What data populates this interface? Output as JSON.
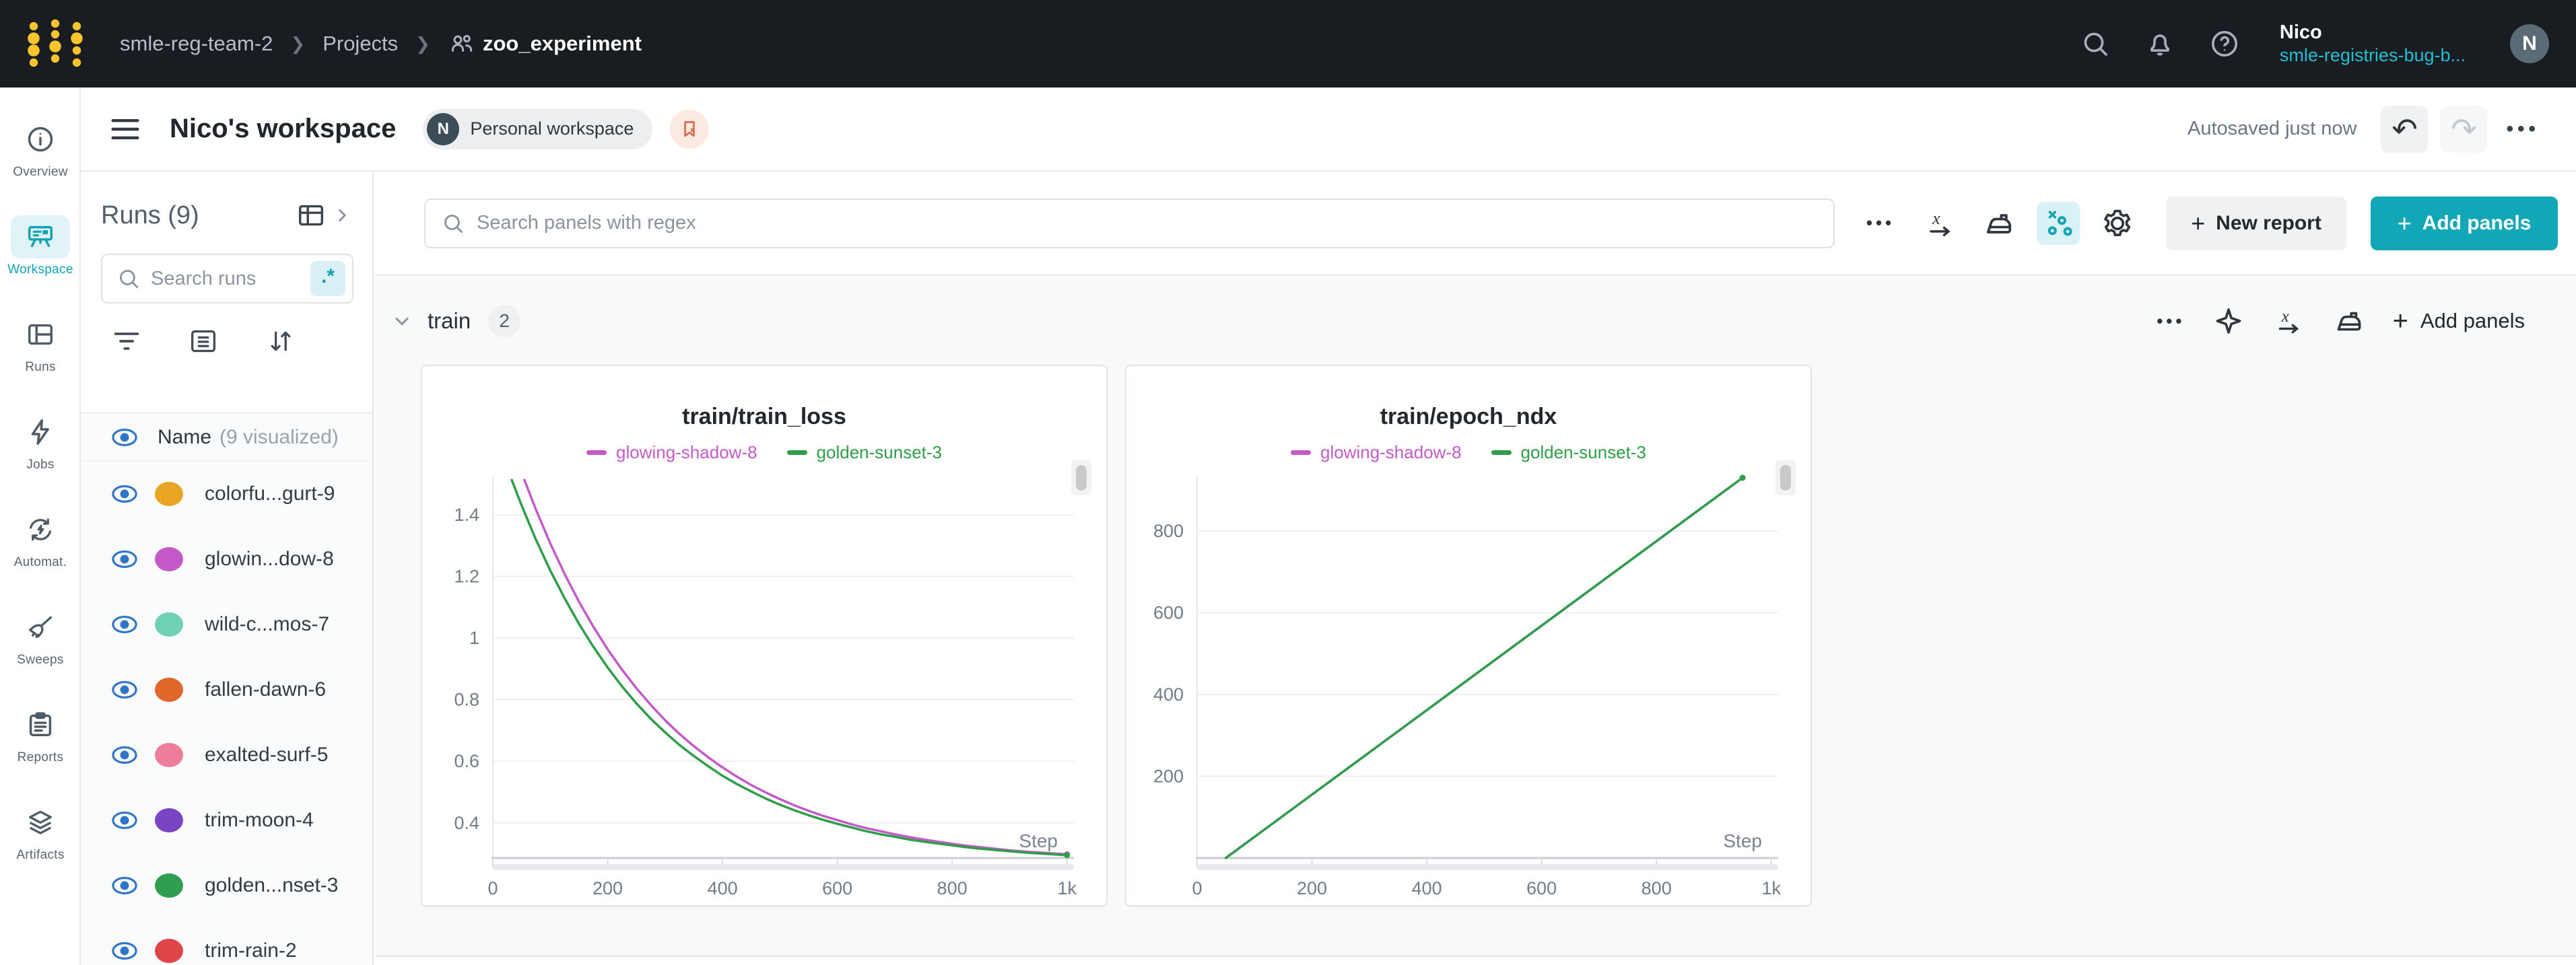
{
  "nav": {
    "breadcrumb": {
      "team": "smle-reg-team-2",
      "projects": "Projects",
      "project": "zoo_experiment"
    },
    "user_name": "Nico",
    "user_org": "smle-registries-bug-b...",
    "avatar_initial": "N"
  },
  "header": {
    "title": "Nico's workspace",
    "badge_initial": "N",
    "badge_label": "Personal workspace",
    "autosave_text": "Autosaved just now"
  },
  "sidebar": {
    "items": [
      {
        "label": "Overview",
        "icon": "info-icon",
        "active": false
      },
      {
        "label": "Workspace",
        "icon": "workspace-icon",
        "active": true
      },
      {
        "label": "Runs",
        "icon": "runs-table-icon",
        "active": false
      },
      {
        "label": "Jobs",
        "icon": "lightning-icon",
        "active": false
      },
      {
        "label": "Automat.",
        "icon": "automations-icon",
        "active": false
      },
      {
        "label": "Sweeps",
        "icon": "broom-icon",
        "active": false
      },
      {
        "label": "Reports",
        "icon": "clipboard-icon",
        "active": false
      },
      {
        "label": "Artifacts",
        "icon": "layers-icon",
        "active": false
      }
    ]
  },
  "runs_panel": {
    "title": "Runs (9)",
    "search_placeholder": "Search runs",
    "regex_label": ".*",
    "name_header": "Name",
    "name_header_suffix": "(9 visualized)",
    "runs": [
      {
        "name": "colorfu...gurt-9",
        "color": "#e8a523"
      },
      {
        "name": "glowin...dow-8",
        "color": "#c45ac8"
      },
      {
        "name": "wild-c...mos-7",
        "color": "#6ed1b4"
      },
      {
        "name": "fallen-dawn-6",
        "color": "#e0662a"
      },
      {
        "name": "exalted-surf-5",
        "color": "#ee7d99"
      },
      {
        "name": "trim-moon-4",
        "color": "#7a45c2"
      },
      {
        "name": "golden...nset-3",
        "color": "#2f9e4f"
      },
      {
        "name": "trim-rain-2",
        "color": "#e04649"
      }
    ]
  },
  "toolbar": {
    "search_placeholder": "Search panels with regex",
    "new_report_label": "New report",
    "add_panels_label": "Add panels",
    "accent_color": "#12a7b7"
  },
  "section": {
    "title": "train",
    "count": "2",
    "add_panels_label": "Add panels"
  },
  "chart_data": [
    {
      "type": "line",
      "title": "train/train_loss",
      "xlabel": "Step",
      "xlim": [
        0,
        1012
      ],
      "ylim": [
        0.286,
        1.52
      ],
      "x_tick_values": [
        0,
        200,
        400,
        600,
        800,
        1000
      ],
      "x_tick_labels": [
        "0",
        "200",
        "400",
        "600",
        "800",
        "1k"
      ],
      "y_tick_values": [
        0.4,
        0.6,
        0.8,
        1,
        1.2,
        1.4
      ],
      "y_tick_labels": [
        "0.4",
        "0.6",
        "0.8",
        "1",
        "1.2",
        "1.4"
      ],
      "grid": "horizontal",
      "legend_position": "top",
      "series": [
        {
          "name": "glowing-shadow-8",
          "color": "#c45ac8",
          "points": [
            [
              55,
              1.513
            ],
            [
              75,
              1.417
            ],
            [
              100,
              1.307
            ],
            [
              125,
              1.208
            ],
            [
              150,
              1.118
            ],
            [
              175,
              1.037
            ],
            [
              200,
              0.963
            ],
            [
              225,
              0.897
            ],
            [
              250,
              0.837
            ],
            [
              275,
              0.783
            ],
            [
              300,
              0.733
            ],
            [
              325,
              0.689
            ],
            [
              350,
              0.649
            ],
            [
              375,
              0.613
            ],
            [
              400,
              0.58
            ],
            [
              425,
              0.55
            ],
            [
              450,
              0.523
            ],
            [
              475,
              0.499
            ],
            [
              500,
              0.477
            ],
            [
              525,
              0.457
            ],
            [
              550,
              0.439
            ],
            [
              575,
              0.423
            ],
            [
              600,
              0.409
            ],
            [
              625,
              0.395
            ],
            [
              650,
              0.383
            ],
            [
              675,
              0.373
            ],
            [
              700,
              0.363
            ],
            [
              725,
              0.354
            ],
            [
              750,
              0.346
            ],
            [
              775,
              0.339
            ],
            [
              800,
              0.332
            ],
            [
              825,
              0.326
            ],
            [
              850,
              0.321
            ],
            [
              875,
              0.316
            ],
            [
              900,
              0.311
            ],
            [
              925,
              0.307
            ],
            [
              950,
              0.304
            ],
            [
              975,
              0.301
            ],
            [
              1000,
              0.298
            ]
          ]
        },
        {
          "name": "golden-sunset-3",
          "color": "#2e9d49",
          "points": [
            [
              33,
              1.513
            ],
            [
              50,
              1.431
            ],
            [
              75,
              1.319
            ],
            [
              100,
              1.219
            ],
            [
              125,
              1.129
            ],
            [
              150,
              1.046
            ],
            [
              175,
              0.972
            ],
            [
              200,
              0.904
            ],
            [
              225,
              0.843
            ],
            [
              250,
              0.788
            ],
            [
              275,
              0.738
            ],
            [
              300,
              0.694
            ],
            [
              325,
              0.653
            ],
            [
              350,
              0.617
            ],
            [
              375,
              0.584
            ],
            [
              400,
              0.553
            ],
            [
              425,
              0.526
            ],
            [
              450,
              0.502
            ],
            [
              475,
              0.479
            ],
            [
              500,
              0.459
            ],
            [
              525,
              0.441
            ],
            [
              550,
              0.425
            ],
            [
              575,
              0.41
            ],
            [
              600,
              0.397
            ],
            [
              625,
              0.385
            ],
            [
              650,
              0.373
            ],
            [
              675,
              0.363
            ],
            [
              700,
              0.355
            ],
            [
              725,
              0.346
            ],
            [
              750,
              0.339
            ],
            [
              775,
              0.333
            ],
            [
              800,
              0.327
            ],
            [
              825,
              0.321
            ],
            [
              850,
              0.316
            ],
            [
              875,
              0.312
            ],
            [
              900,
              0.308
            ],
            [
              925,
              0.304
            ],
            [
              950,
              0.301
            ],
            [
              975,
              0.298
            ],
            [
              1000,
              0.295
            ]
          ]
        }
      ]
    },
    {
      "type": "line",
      "title": "train/epoch_ndx",
      "xlabel": "Step",
      "xlim": [
        0,
        1012
      ],
      "ylim": [
        0,
        930
      ],
      "x_tick_values": [
        0,
        200,
        400,
        600,
        800,
        1000
      ],
      "x_tick_labels": [
        "0",
        "200",
        "400",
        "600",
        "800",
        "1k"
      ],
      "y_tick_values": [
        200,
        400,
        600,
        800
      ],
      "y_tick_labels": [
        "200",
        "400",
        "600",
        "800"
      ],
      "grid": "horizontal",
      "legend_position": "top",
      "series": [
        {
          "name": "glowing-shadow-8",
          "color": "#c45ac8",
          "points": [
            [
              50,
              0
            ],
            [
              950,
              930
            ]
          ]
        },
        {
          "name": "golden-sunset-3",
          "color": "#2e9d49",
          "points": [
            [
              50,
              0
            ],
            [
              950,
              930
            ]
          ]
        }
      ]
    }
  ]
}
